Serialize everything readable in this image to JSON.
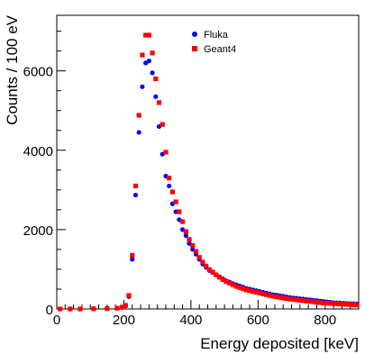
{
  "chart_data": {
    "type": "scatter",
    "title": "",
    "xlabel": "Energy deposited [keV]",
    "ylabel": "Counts / 100 eV",
    "xlim": [
      0,
      900
    ],
    "ylim": [
      0,
      7400
    ],
    "x_ticks": [
      0,
      200,
      400,
      600,
      800
    ],
    "y_ticks": [
      0,
      2000,
      4000,
      6000
    ],
    "x_tick_labels": [
      "0",
      "200",
      "400",
      "600",
      "800"
    ],
    "y_tick_labels": [
      "0",
      "2000",
      "4000",
      "6000"
    ],
    "grid": false,
    "legend_position": "top-center",
    "series": [
      {
        "name": "Fluka",
        "color": "#0000ff",
        "marker": "circle",
        "points": [
          [
            10,
            0
          ],
          [
            40,
            0
          ],
          [
            70,
            0
          ],
          [
            110,
            5
          ],
          [
            150,
            10
          ],
          [
            180,
            20
          ],
          [
            195,
            40
          ],
          [
            205,
            80
          ],
          [
            215,
            310
          ],
          [
            225,
            1250
          ],
          [
            235,
            2870
          ],
          [
            245,
            4450
          ],
          [
            255,
            5600
          ],
          [
            265,
            6200
          ],
          [
            275,
            6250
          ],
          [
            285,
            5950
          ],
          [
            295,
            5350
          ],
          [
            305,
            4600
          ],
          [
            315,
            3900
          ],
          [
            325,
            3350
          ],
          [
            335,
            3100
          ],
          [
            345,
            2650
          ],
          [
            355,
            2450
          ],
          [
            365,
            2250
          ],
          [
            375,
            2000
          ],
          [
            385,
            1850
          ],
          [
            395,
            1650
          ],
          [
            405,
            1500
          ],
          [
            415,
            1380
          ],
          [
            425,
            1250
          ],
          [
            435,
            1130
          ],
          [
            445,
            1050
          ],
          [
            455,
            970
          ],
          [
            465,
            920
          ],
          [
            475,
            860
          ],
          [
            485,
            810
          ],
          [
            495,
            760
          ],
          [
            505,
            710
          ],
          [
            515,
            680
          ],
          [
            525,
            640
          ],
          [
            535,
            610
          ],
          [
            545,
            580
          ],
          [
            555,
            550
          ],
          [
            565,
            520
          ],
          [
            575,
            500
          ],
          [
            585,
            480
          ],
          [
            595,
            460
          ],
          [
            605,
            440
          ],
          [
            615,
            420
          ],
          [
            625,
            400
          ],
          [
            635,
            380
          ],
          [
            645,
            360
          ],
          [
            655,
            350
          ],
          [
            665,
            335
          ],
          [
            675,
            320
          ],
          [
            685,
            305
          ],
          [
            695,
            290
          ],
          [
            705,
            280
          ],
          [
            715,
            270
          ],
          [
            725,
            260
          ],
          [
            735,
            250
          ],
          [
            745,
            240
          ],
          [
            755,
            230
          ],
          [
            765,
            220
          ],
          [
            775,
            210
          ],
          [
            785,
            200
          ],
          [
            795,
            190
          ],
          [
            805,
            180
          ],
          [
            815,
            170
          ],
          [
            825,
            160
          ],
          [
            835,
            155
          ],
          [
            845,
            150
          ],
          [
            855,
            145
          ],
          [
            865,
            140
          ],
          [
            875,
            135
          ],
          [
            885,
            130
          ],
          [
            895,
            125
          ]
        ]
      },
      {
        "name": "Geant4",
        "color": "#ff0000",
        "marker": "square",
        "points": [
          [
            10,
            0
          ],
          [
            40,
            0
          ],
          [
            70,
            0
          ],
          [
            110,
            5
          ],
          [
            150,
            10
          ],
          [
            180,
            20
          ],
          [
            195,
            45
          ],
          [
            205,
            90
          ],
          [
            215,
            340
          ],
          [
            225,
            1350
          ],
          [
            235,
            3100
          ],
          [
            245,
            4880
          ],
          [
            255,
            6400
          ],
          [
            265,
            6900
          ],
          [
            275,
            6900
          ],
          [
            285,
            6450
          ],
          [
            295,
            5800
          ],
          [
            305,
            5200
          ],
          [
            315,
            4650
          ],
          [
            325,
            3950
          ],
          [
            335,
            3300
          ],
          [
            345,
            2950
          ],
          [
            355,
            2700
          ],
          [
            365,
            2450
          ],
          [
            375,
            2200
          ],
          [
            385,
            1950
          ],
          [
            395,
            1750
          ],
          [
            405,
            1600
          ],
          [
            415,
            1450
          ],
          [
            425,
            1300
          ],
          [
            435,
            1180
          ],
          [
            445,
            1080
          ],
          [
            455,
            990
          ],
          [
            465,
            930
          ],
          [
            475,
            860
          ],
          [
            485,
            800
          ],
          [
            495,
            740
          ],
          [
            505,
            690
          ],
          [
            515,
            650
          ],
          [
            525,
            610
          ],
          [
            535,
            570
          ],
          [
            545,
            540
          ],
          [
            555,
            510
          ],
          [
            565,
            480
          ],
          [
            575,
            460
          ],
          [
            585,
            440
          ],
          [
            595,
            420
          ],
          [
            605,
            400
          ],
          [
            615,
            380
          ],
          [
            625,
            360
          ],
          [
            635,
            340
          ],
          [
            645,
            320
          ],
          [
            655,
            305
          ],
          [
            665,
            290
          ],
          [
            675,
            275
          ],
          [
            685,
            260
          ],
          [
            695,
            250
          ],
          [
            705,
            240
          ],
          [
            715,
            230
          ],
          [
            725,
            220
          ],
          [
            735,
            210
          ],
          [
            745,
            200
          ],
          [
            755,
            190
          ],
          [
            765,
            180
          ],
          [
            775,
            170
          ],
          [
            785,
            160
          ],
          [
            795,
            150
          ],
          [
            805,
            145
          ],
          [
            815,
            140
          ],
          [
            825,
            135
          ],
          [
            835,
            130
          ],
          [
            845,
            125
          ],
          [
            855,
            120
          ],
          [
            865,
            115
          ],
          [
            875,
            110
          ],
          [
            885,
            105
          ],
          [
            895,
            100
          ]
        ]
      }
    ]
  }
}
